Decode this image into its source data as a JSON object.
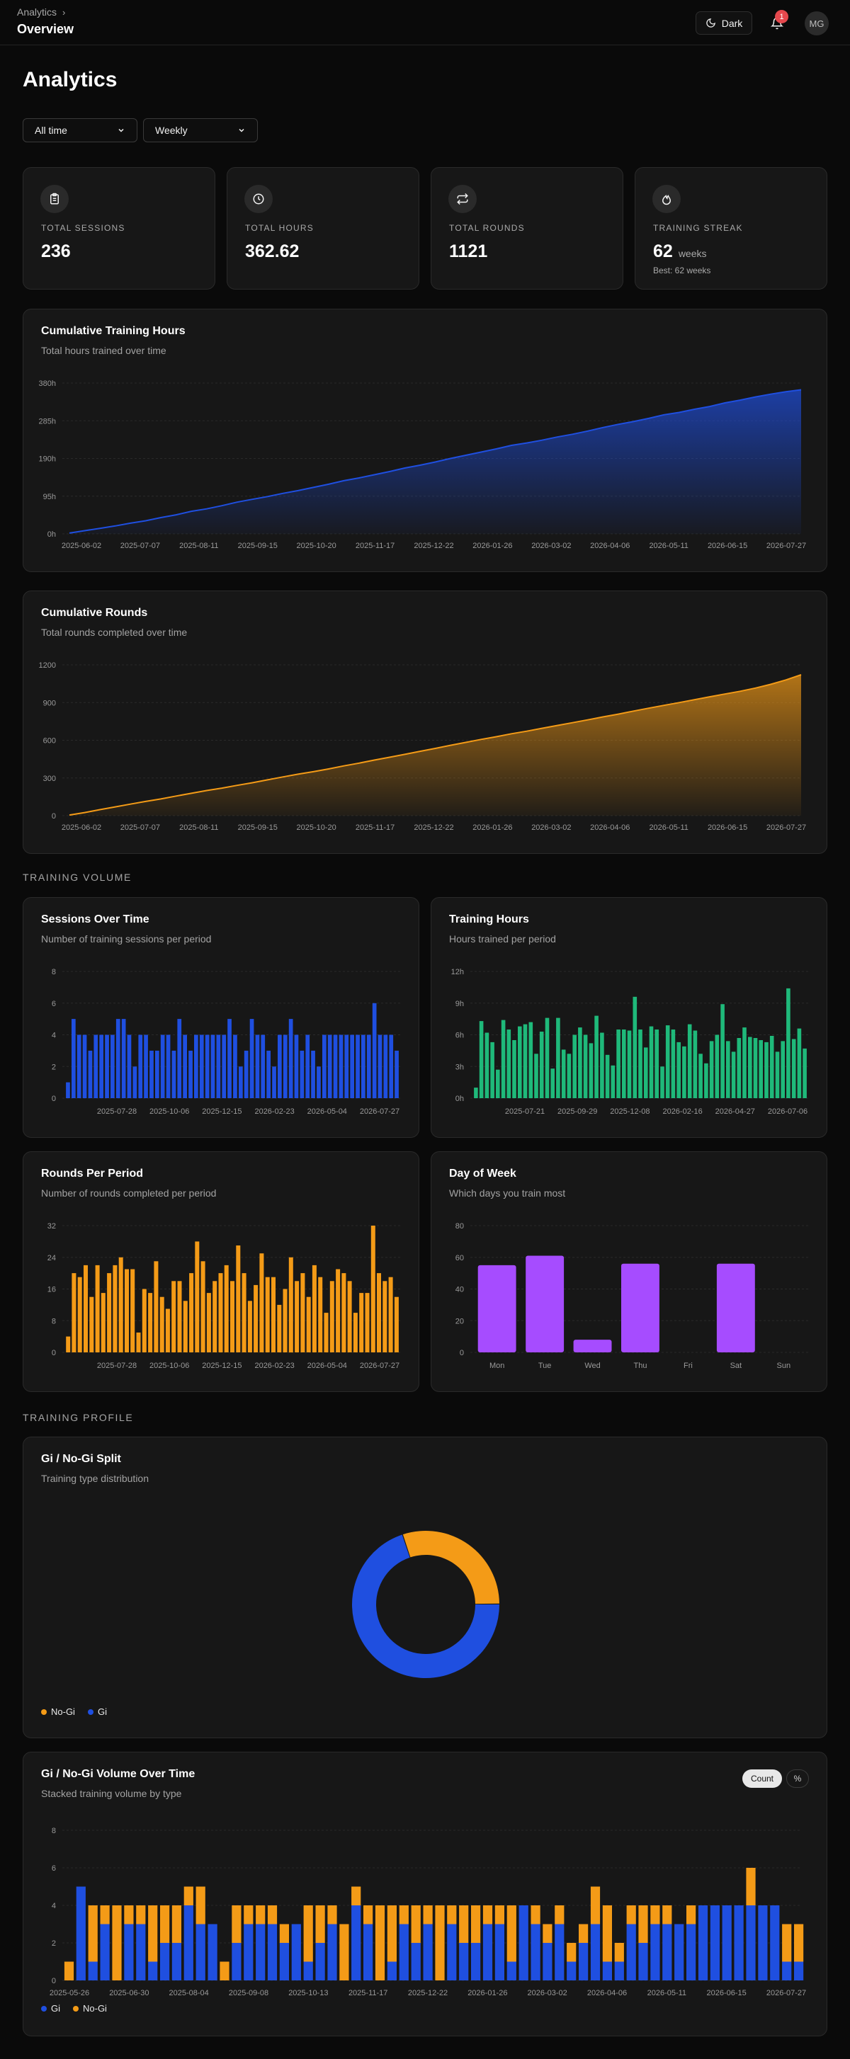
{
  "header": {
    "breadcrumb": "Analytics",
    "page": "Overview",
    "theme_label": "Dark",
    "notification_count": "1",
    "avatar_initials": "MG"
  },
  "title": "Analytics",
  "filters": {
    "range": "All time",
    "period": "Weekly"
  },
  "stats": [
    {
      "label": "TOTAL SESSIONS",
      "value": "236",
      "icon": "clipboard-icon"
    },
    {
      "label": "TOTAL HOURS",
      "value": "362.62",
      "icon": "clock-icon"
    },
    {
      "label": "TOTAL ROUNDS",
      "value": "1121",
      "icon": "repeat-icon"
    },
    {
      "label": "TRAINING STREAK",
      "value": "62",
      "unit": "weeks",
      "best": "Best: 62 weeks",
      "icon": "flame-icon"
    }
  ],
  "colors": {
    "blue": "#1f4fe0",
    "orange": "#f49b17",
    "green": "#1fb97a",
    "purple": "#a64cff"
  },
  "sections": {
    "volume": "TRAINING VOLUME",
    "profile": "TRAINING PROFILE"
  },
  "chart_data": [
    {
      "id": "cum_hours",
      "type": "area",
      "title": "Cumulative Training Hours",
      "subtitle": "Total hours trained over time",
      "x_ticks": [
        "2025-06-02",
        "2025-07-07",
        "2025-08-11",
        "2025-09-15",
        "2025-10-20",
        "2025-11-17",
        "2025-12-22",
        "2026-01-26",
        "2026-03-02",
        "2026-04-06",
        "2026-05-11",
        "2026-06-15",
        "2026-07-27"
      ],
      "y_ticks": [
        "0h",
        "95h",
        "190h",
        "285h",
        "380h"
      ],
      "ylim": [
        0,
        380
      ],
      "values": [
        2,
        8,
        14,
        20,
        27,
        33,
        41,
        48,
        57,
        63,
        71,
        80,
        87,
        94,
        102,
        109,
        117,
        125,
        134,
        141,
        149,
        157,
        166,
        173,
        181,
        190,
        198,
        206,
        214,
        223,
        229,
        236,
        244,
        251,
        259,
        268,
        276,
        283,
        291,
        300,
        306,
        314,
        321,
        330,
        337,
        345,
        352,
        358,
        363
      ]
    },
    {
      "id": "cum_rounds",
      "type": "area",
      "title": "Cumulative Rounds",
      "subtitle": "Total rounds completed over time",
      "x_ticks": [
        "2025-06-02",
        "2025-07-07",
        "2025-08-11",
        "2025-09-15",
        "2025-10-20",
        "2025-11-17",
        "2025-12-22",
        "2026-01-26",
        "2026-03-02",
        "2026-04-06",
        "2026-05-11",
        "2026-06-15",
        "2026-07-27"
      ],
      "y_ticks": [
        "0",
        "300",
        "600",
        "900",
        "1200"
      ],
      "ylim": [
        0,
        1200
      ],
      "values": [
        5,
        25,
        48,
        70,
        92,
        113,
        133,
        156,
        178,
        200,
        219,
        241,
        262,
        285,
        308,
        330,
        350,
        372,
        396,
        418,
        442,
        465,
        488,
        512,
        535,
        560,
        583,
        607,
        628,
        652,
        672,
        695,
        718,
        740,
        762,
        786,
        808,
        832,
        855,
        878,
        900,
        923,
        946,
        968,
        990,
        1015,
        1045,
        1080,
        1121
      ]
    },
    {
      "id": "sessions",
      "type": "bar",
      "title": "Sessions Over Time",
      "subtitle": "Number of training sessions per period",
      "x_ticks": [
        "2025-07-28",
        "2025-10-06",
        "2025-12-15",
        "2026-02-23",
        "2026-05-04",
        "2026-07-27"
      ],
      "y_ticks": [
        "0",
        "2",
        "4",
        "6",
        "8"
      ],
      "ylim": [
        0,
        8
      ],
      "values": [
        1,
        5,
        4,
        4,
        3,
        4,
        4,
        4,
        4,
        5,
        5,
        4,
        2,
        4,
        4,
        3,
        3,
        4,
        4,
        3,
        5,
        4,
        3,
        4,
        4,
        4,
        4,
        4,
        4,
        5,
        4,
        2,
        3,
        5,
        4,
        4,
        3,
        2,
        4,
        4,
        5,
        4,
        3,
        4,
        3,
        2,
        4,
        4,
        4,
        4,
        4,
        4,
        4,
        4,
        4,
        6,
        4,
        4,
        4,
        3
      ]
    },
    {
      "id": "hours",
      "type": "bar",
      "title": "Training Hours",
      "subtitle": "Hours trained per period",
      "x_ticks": [
        "2025-07-21",
        "2025-09-29",
        "2025-12-08",
        "2026-02-16",
        "2026-04-27",
        "2026-07-06"
      ],
      "y_ticks": [
        "0h",
        "3h",
        "6h",
        "9h",
        "12h"
      ],
      "ylim": [
        0,
        12
      ],
      "values": [
        1,
        7.3,
        6.2,
        5.3,
        2.7,
        7.4,
        6.5,
        5.5,
        6.8,
        7,
        7.2,
        4.2,
        6.3,
        7.6,
        2.8,
        7.6,
        4.6,
        4.2,
        6,
        6.7,
        6,
        5.2,
        7.8,
        6.2,
        4.1,
        3.1,
        6.5,
        6.5,
        6.4,
        9.6,
        6.5,
        4.8,
        6.8,
        6.5,
        3,
        6.9,
        6.5,
        5.3,
        4.9,
        7,
        6.4,
        4.2,
        3.3,
        5.4,
        6,
        8.9,
        5.4,
        4.4,
        5.7,
        6.7,
        5.8,
        5.7,
        5.5,
        5.3,
        5.9,
        4.4,
        5.4,
        10.4,
        5.6,
        6.6,
        4.7
      ]
    },
    {
      "id": "rounds",
      "type": "bar",
      "title": "Rounds Per Period",
      "subtitle": "Number of rounds completed per period",
      "x_ticks": [
        "2025-07-28",
        "2025-10-06",
        "2025-12-15",
        "2026-02-23",
        "2026-05-04",
        "2026-07-27"
      ],
      "y_ticks": [
        "0",
        "8",
        "16",
        "24",
        "32"
      ],
      "ylim": [
        0,
        32
      ],
      "values": [
        4,
        20,
        19,
        22,
        14,
        22,
        15,
        20,
        22,
        24,
        21,
        21,
        5,
        16,
        15,
        23,
        14,
        11,
        18,
        18,
        13,
        20,
        28,
        23,
        15,
        18,
        20,
        22,
        18,
        27,
        20,
        13,
        17,
        25,
        19,
        19,
        12,
        16,
        24,
        18,
        20,
        14,
        22,
        19,
        10,
        18,
        21,
        20,
        18,
        10,
        15,
        15,
        32,
        20,
        18,
        19,
        14
      ]
    },
    {
      "id": "dow",
      "type": "bar",
      "title": "Day of Week",
      "subtitle": "Which days you train most",
      "categories": [
        "Mon",
        "Tue",
        "Wed",
        "Thu",
        "Fri",
        "Sat",
        "Sun"
      ],
      "y_ticks": [
        "0",
        "20",
        "40",
        "60",
        "80"
      ],
      "ylim": [
        0,
        80
      ],
      "values": [
        55,
        61,
        8,
        56,
        0,
        56,
        0
      ]
    },
    {
      "id": "split",
      "type": "pie",
      "title": "Gi / No-Gi Split",
      "subtitle": "Training type distribution",
      "slices": [
        {
          "name": "No-Gi",
          "value": 30,
          "color": "#f49b17"
        },
        {
          "name": "Gi",
          "value": 70,
          "color": "#1f4fe0"
        }
      ]
    },
    {
      "id": "stacked",
      "type": "bar",
      "title": "Gi / No-Gi Volume Over Time",
      "subtitle": "Stacked training volume by type",
      "x_ticks": [
        "2025-05-26",
        "2025-06-30",
        "2025-08-04",
        "2025-09-08",
        "2025-10-13",
        "2025-11-17",
        "2025-12-22",
        "2026-01-26",
        "2026-03-02",
        "2026-04-06",
        "2026-05-11",
        "2026-06-15",
        "2026-07-27"
      ],
      "y_ticks": [
        "0",
        "2",
        "4",
        "6",
        "8"
      ],
      "ylim": [
        0,
        8
      ],
      "toggle": [
        "Count",
        "%"
      ],
      "series": [
        {
          "name": "Gi",
          "values": [
            0,
            5,
            1,
            3,
            0,
            3,
            3,
            1,
            2,
            2,
            4,
            3,
            3,
            0,
            2,
            3,
            3,
            3,
            2,
            3,
            1,
            2,
            3,
            0,
            4,
            3,
            0,
            1,
            3,
            2,
            3,
            0,
            3,
            2,
            2,
            3,
            3,
            1,
            4,
            3,
            2,
            3,
            1,
            2,
            3,
            1,
            1,
            3,
            2,
            3,
            3,
            3,
            3,
            4,
            4,
            4,
            4,
            4,
            4,
            4,
            1,
            1
          ]
        },
        {
          "name": "No-Gi",
          "values": [
            1,
            0,
            3,
            1,
            4,
            1,
            1,
            3,
            2,
            2,
            1,
            2,
            0,
            1,
            2,
            1,
            1,
            1,
            1,
            0,
            3,
            2,
            1,
            3,
            1,
            1,
            4,
            3,
            1,
            2,
            1,
            4,
            1,
            2,
            2,
            1,
            1,
            3,
            0,
            1,
            1,
            1,
            1,
            1,
            2,
            3,
            1,
            1,
            2,
            1,
            1,
            0,
            1,
            0,
            0,
            0,
            0,
            2,
            0,
            0,
            2,
            2
          ]
        }
      ]
    }
  ]
}
